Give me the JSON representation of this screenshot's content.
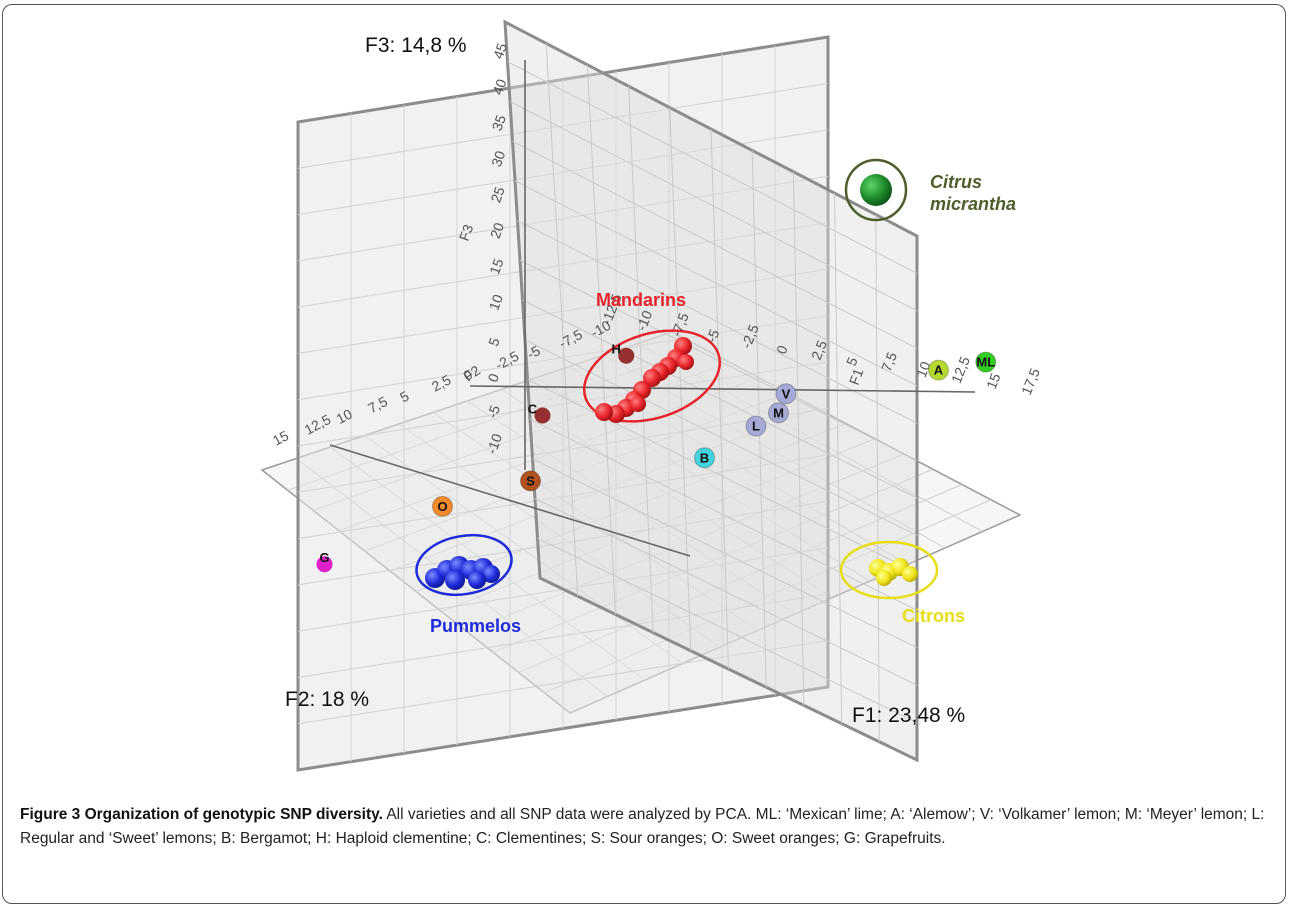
{
  "chart_data": {
    "type": "scatter",
    "title": "",
    "projection": "3d",
    "grid": true,
    "axes": {
      "f1": {
        "label": "F1: 23,48 %",
        "short": "F1",
        "ticks": [
          "-12,5",
          "-10",
          "-7,5",
          "-5",
          "-2,5",
          "0",
          "2,5",
          "5",
          "7,5",
          "10",
          "12,5",
          "15",
          "17,5"
        ]
      },
      "f2": {
        "label": "F2: 18 %",
        "short": "F2",
        "ticks": [
          "15",
          "12,5",
          "10",
          "7,5",
          "5",
          "2,5",
          "0",
          "-2,5",
          "-5",
          "-7,5",
          "-10"
        ]
      },
      "f3": {
        "label": "F3: 14,8 %",
        "short": "F3",
        "ticks": [
          "45",
          "40",
          "35",
          "30",
          "25",
          "20",
          "15",
          "10",
          "5",
          "0",
          "-5",
          "-10"
        ]
      }
    },
    "groups": [
      {
        "name": "Mandarins",
        "color": "#e8242b"
      },
      {
        "name": "Pummelos",
        "color": "#1f2bd9"
      },
      {
        "name": "Citrons",
        "color": "#e6de12"
      },
      {
        "name": "Citrus micrantha",
        "color": "#1e8c2a"
      }
    ],
    "points": [
      {
        "label": "ML",
        "f1": 10.5,
        "f2": -8,
        "f3": 0,
        "color": "#33cc22"
      },
      {
        "label": "A",
        "f1": 9,
        "f2": -7,
        "f3": 0,
        "color": "#b5d930"
      },
      {
        "label": "V",
        "f1": 4,
        "f2": -4,
        "f3": 0,
        "color": "#a6a8d6"
      },
      {
        "label": "M",
        "f1": 4,
        "f2": -3.5,
        "f3": -1,
        "color": "#a6a8d6"
      },
      {
        "label": "L",
        "f1": 4,
        "f2": -2,
        "f3": -1,
        "color": "#a6a8d6"
      },
      {
        "label": "B",
        "f1": 3,
        "f2": 0,
        "f3": -2,
        "color": "#44d4dd"
      },
      {
        "label": "H",
        "f1": -2.5,
        "f2": -2,
        "f3": 4,
        "color": "#8b1c1c"
      },
      {
        "label": "C",
        "f1": -5,
        "f2": 0,
        "f3": 1,
        "color": "#8b1c1c"
      },
      {
        "label": "S",
        "f1": -3,
        "f2": 3,
        "f3": -2,
        "color": "#b0521d"
      },
      {
        "label": "O",
        "f1": -5,
        "f2": 6,
        "f3": -2,
        "color": "#f08a2a"
      },
      {
        "label": "G",
        "f1": -7,
        "f2": 11,
        "f3": -3,
        "color": "#e020c8"
      }
    ]
  },
  "caption": {
    "title": "Figure 3 Organization of genotypic SNP diversity.",
    "text": "All varieties and all SNP data were analyzed by PCA. ML: ‘Mexican’ lime; A: ‘Alemow’; V: ‘Volkamer’ lemon; M: ‘Meyer’ lemon; L: Regular and ‘Sweet’ lemons; B: Bergamot; H: Haploid clementine; C: Clementines; S: Sour oranges; O: Sweet oranges; G: Grapefruits."
  }
}
